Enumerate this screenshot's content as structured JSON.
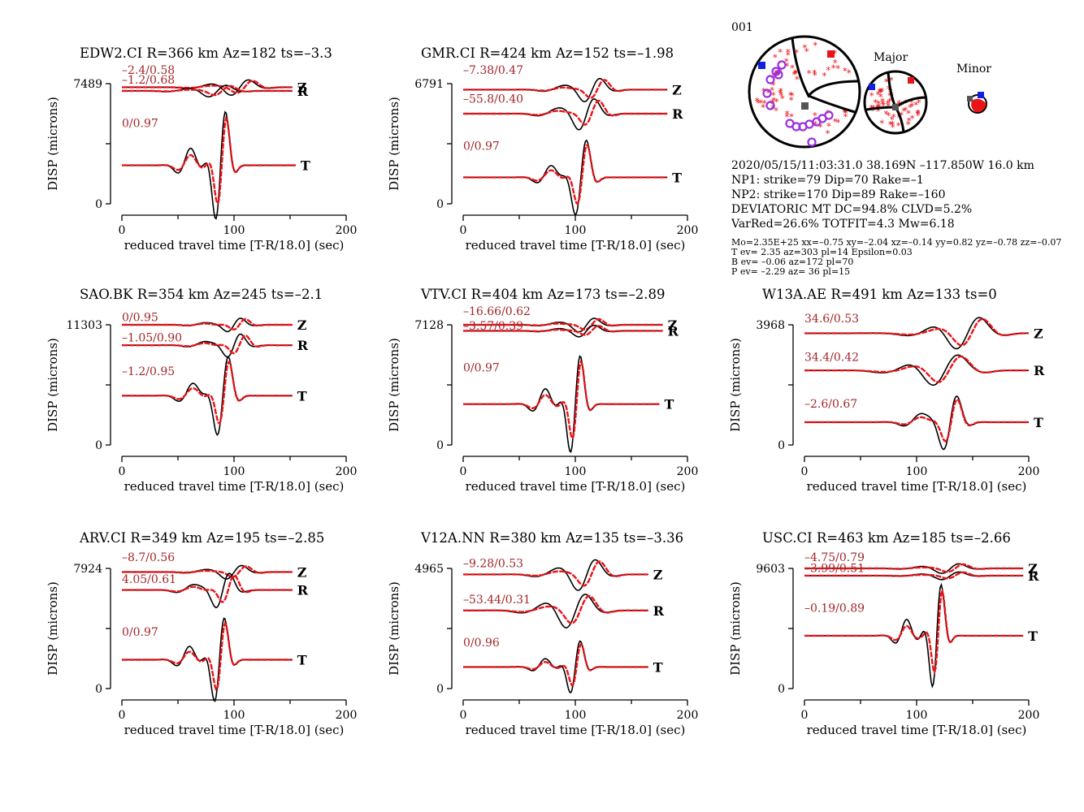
{
  "colors": {
    "observed": "#000000",
    "synthetic": "#e8141a",
    "fit_label": "#a2262a",
    "t_axis": "#1020e0",
    "p_axis": "#e8141a",
    "b_axis": "#555555",
    "pol": "#9b30e0"
  },
  "chart_data": [
    {
      "type": "line",
      "title": "EDW2.CI R=366 km Az=182 ts=–3.3",
      "xlabel": "reduced travel time [T-R/18.0] (sec)",
      "ylabel": "DISP (microns)",
      "xlim": [
        0,
        200
      ],
      "xticks": [
        "0",
        "100",
        "200"
      ],
      "yticks": [
        "0",
        "7489"
      ],
      "ylim": [
        0,
        7489
      ],
      "traces": [
        {
          "comp": "Z",
          "label": "–2.4/0.58",
          "start": 0,
          "end": 152,
          "amp": 0.08,
          "center": 105,
          "width": 16,
          "shift": -2.4,
          "cc": 0.58
        },
        {
          "comp": "R",
          "label": "–1.2/0.68",
          "start": 0,
          "end": 152,
          "amp": 0.06,
          "center": 85,
          "width": 16,
          "shift": -1.2,
          "cc": 0.68
        },
        {
          "comp": "T",
          "label": "0/0.97",
          "start": 0,
          "end": 155,
          "amp": 0.58,
          "center": 88,
          "width": 9,
          "shift": 0,
          "cc": 0.97
        }
      ]
    },
    {
      "type": "line",
      "title": "GMR.CI R=424 km Az=152 ts=–1.98",
      "xlabel": "reduced travel time [T-R/18.0] (sec)",
      "ylabel": "DISP (microns)",
      "xlim": [
        0,
        200
      ],
      "xticks": [
        "0",
        "100",
        "200"
      ],
      "yticks": [
        "0",
        "6791"
      ],
      "ylim": [
        0,
        6791
      ],
      "traces": [
        {
          "comp": "Z",
          "label": "–7.38/0.47",
          "start": 0,
          "end": 182,
          "amp": 0.12,
          "center": 115,
          "width": 14,
          "shift": -7.38,
          "cc": 0.47
        },
        {
          "comp": "R",
          "label": "–55.8/0.40",
          "start": 0,
          "end": 182,
          "amp": 0.16,
          "center": 110,
          "width": 14,
          "shift": -55.8,
          "cc": 0.4
        },
        {
          "comp": "T",
          "label": "0/0.97",
          "start": 0,
          "end": 182,
          "amp": 0.4,
          "center": 105,
          "width": 10,
          "shift": 0,
          "cc": 0.97
        }
      ]
    },
    {
      "type": "line",
      "title": "SAO.BK R=354 km Az=245 ts=–2.1",
      "xlabel": "reduced travel time [T-R/18.0] (sec)",
      "ylabel": "DISP (microns)",
      "xlim": [
        0,
        200
      ],
      "xticks": [
        "0",
        "100",
        "200"
      ],
      "yticks": [
        "0",
        "11303"
      ],
      "ylim": [
        0,
        11303
      ],
      "traces": [
        {
          "comp": "Z",
          "label": "0/0.95",
          "start": 0,
          "end": 152,
          "amp": 0.07,
          "center": 100,
          "width": 12,
          "shift": 0,
          "cc": 0.95
        },
        {
          "comp": "R",
          "label": "–1.05/0.90",
          "start": 0,
          "end": 152,
          "amp": 0.12,
          "center": 100,
          "width": 12,
          "shift": -1.05,
          "cc": 0.9
        },
        {
          "comp": "T",
          "label": "–1.2/0.95",
          "start": 0,
          "end": 152,
          "amp": 0.42,
          "center": 90,
          "width": 10,
          "shift": -1.2,
          "cc": 0.95
        }
      ]
    },
    {
      "type": "line",
      "title": "VTV.CI R=404 km Az=173 ts=–2.89",
      "xlabel": "reduced travel time [T-R/18.0] (sec)",
      "ylabel": "DISP (microns)",
      "xlim": [
        0,
        200
      ],
      "xticks": [
        "0",
        "100",
        "200"
      ],
      "yticks": [
        "0",
        "7128"
      ],
      "ylim": [
        0,
        7128
      ],
      "traces": [
        {
          "comp": "Z",
          "label": "–16.66/0.62",
          "start": 0,
          "end": 178,
          "amp": 0.07,
          "center": 110,
          "width": 14,
          "shift": -16.66,
          "cc": 0.62
        },
        {
          "comp": "R",
          "label": "–3.57/0.39",
          "start": 0,
          "end": 178,
          "amp": 0.06,
          "center": 110,
          "width": 14,
          "shift": -3.57,
          "cc": 0.39
        },
        {
          "comp": "T",
          "label": "0/0.97",
          "start": 0,
          "end": 175,
          "amp": 0.52,
          "center": 100,
          "width": 9,
          "shift": 0,
          "cc": 0.97
        }
      ]
    },
    {
      "type": "line",
      "title": "W13A.AE R=491 km Az=133 ts=0",
      "xlabel": "reduced travel time [T-R/18.0] (sec)",
      "ylabel": "DISP (microns)",
      "xlim": [
        0,
        200
      ],
      "xticks": [
        "0",
        "100",
        "200"
      ],
      "yticks": [
        "0",
        "3968"
      ],
      "ylim": [
        0,
        3968
      ],
      "traces": [
        {
          "comp": "Z",
          "label": "34.6/0.53",
          "start": 0,
          "end": 200,
          "amp": 0.18,
          "center": 145,
          "width": 22,
          "shift": 34.6,
          "cc": 0.53
        },
        {
          "comp": "R",
          "label": "34.4/0.42",
          "start": 0,
          "end": 200,
          "amp": 0.18,
          "center": 125,
          "width": 24,
          "shift": 34.4,
          "cc": 0.42
        },
        {
          "comp": "T",
          "label": "–2.6/0.67",
          "start": 0,
          "end": 200,
          "amp": 0.28,
          "center": 130,
          "width": 12,
          "shift": -2.6,
          "cc": 0.67
        }
      ]
    },
    {
      "type": "line",
      "title": "ARV.CI R=349 km Az=195 ts=–2.85",
      "xlabel": "reduced travel time [T-R/18.0] (sec)",
      "ylabel": "DISP (microns)",
      "xlim": [
        0,
        200
      ],
      "xticks": [
        "0",
        "100",
        "200"
      ],
      "yticks": [
        "0",
        "7924"
      ],
      "ylim": [
        0,
        7924
      ],
      "traces": [
        {
          "comp": "Z",
          "label": "–8.7/0.56",
          "start": 0,
          "end": 152,
          "amp": 0.07,
          "center": 100,
          "width": 14,
          "shift": -8.7,
          "cc": 0.56
        },
        {
          "comp": "R",
          "label": "4.05/0.61",
          "start": 0,
          "end": 152,
          "amp": 0.18,
          "center": 90,
          "width": 12,
          "shift": 4.05,
          "cc": 0.61
        },
        {
          "comp": "T",
          "label": "0/0.97",
          "start": 0,
          "end": 152,
          "amp": 0.45,
          "center": 87,
          "width": 9,
          "shift": 0,
          "cc": 0.97
        }
      ]
    },
    {
      "type": "line",
      "title": "V12A.NN R=380 km Az=135 ts=–3.36",
      "xlabel": "reduced travel time [T-R/18.0] (sec)",
      "ylabel": "DISP (microns)",
      "xlim": [
        0,
        200
      ],
      "xticks": [
        "0",
        "100",
        "200"
      ],
      "yticks": [
        "0",
        "4965"
      ],
      "ylim": [
        0,
        4965
      ],
      "traces": [
        {
          "comp": "Z",
          "label": "–9.28/0.53",
          "start": 0,
          "end": 165,
          "amp": 0.16,
          "center": 110,
          "width": 16,
          "shift": -9.28,
          "cc": 0.53
        },
        {
          "comp": "R",
          "label": "–53.44/0.31",
          "start": 0,
          "end": 165,
          "amp": 0.18,
          "center": 100,
          "width": 18,
          "shift": -53.44,
          "cc": 0.31
        },
        {
          "comp": "T",
          "label": "0/0.96",
          "start": 0,
          "end": 165,
          "amp": 0.28,
          "center": 100,
          "width": 9,
          "shift": 0,
          "cc": 0.96
        }
      ]
    },
    {
      "type": "line",
      "title": "USC.CI R=463 km Az=185 ts=–2.66",
      "xlabel": "reduced travel time [T-R/18.0] (sec)",
      "ylabel": "DISP (microns)",
      "xlim": [
        0,
        200
      ],
      "xticks": [
        "0",
        "100",
        "200"
      ],
      "yticks": [
        "0",
        "9603"
      ],
      "ylim": [
        0,
        9603
      ],
      "traces": [
        {
          "comp": "Z",
          "label": "–4.75/0.79",
          "start": 0,
          "end": 195,
          "amp": 0.05,
          "center": 130,
          "width": 16,
          "shift": -4.75,
          "cc": 0.79
        },
        {
          "comp": "R",
          "label": "–3.99/0.51",
          "start": 0,
          "end": 195,
          "amp": 0.04,
          "center": 130,
          "width": 16,
          "shift": -3.99,
          "cc": 0.51
        },
        {
          "comp": "T",
          "label": "–0.19/0.89",
          "start": 0,
          "end": 195,
          "amp": 0.55,
          "center": 118,
          "width": 8,
          "shift": -0.19,
          "cc": 0.89
        }
      ]
    }
  ],
  "event": {
    "id": "001",
    "major_label": "Major",
    "minor_label": "Minor",
    "line1": "2020/05/15/11:03:31.0 38.169N –117.850W 16.0 km",
    "line2": "NP1: strike=79 Dip=70 Rake=–1",
    "line3": "NP2: strike=170 Dip=89 Rake=–160",
    "line4": "DEVIATORIC MT DC=94.8% CLVD=5.2%",
    "line5": "VarRed=26.6% TOTFIT=4.3 Mw=6.18",
    "small1": "Mo=2.35E+25 xx=–0.75 xy=–2.04 xz=–0.14 yy=0.82 yz=–0.78 zz=–0.07",
    "small2": "T ev=  2.35 az=303 pl=14 Epsilon=0.03",
    "small3": "B ev= –0.06 az=172 pl=70",
    "small4": "P ev= –2.29 az= 36 pl=15"
  }
}
